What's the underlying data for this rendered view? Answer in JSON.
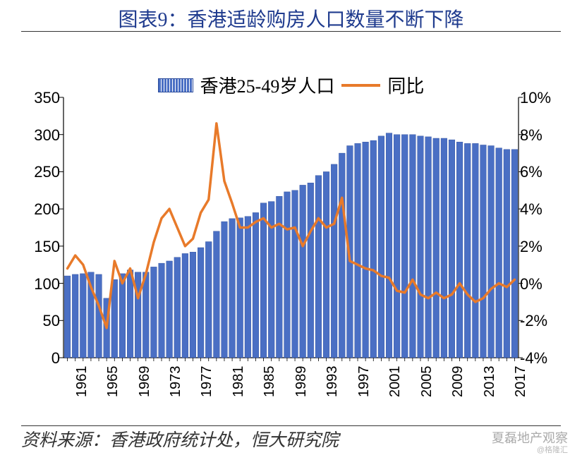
{
  "title": "图表9：香港适龄购房人口数量不断下降",
  "source": "资料来源：香港政府统计处，恒大研究院",
  "watermark_main": "夏磊地产观察",
  "watermark_sub": "@格隆汇",
  "legend": {
    "bar_label": "香港25-49岁人口",
    "line_label": "同比"
  },
  "chart": {
    "type": "bar+line",
    "y_left": {
      "min": 0,
      "max": 350,
      "step": 50
    },
    "y_right": {
      "min": -4,
      "max": 10,
      "step": 2,
      "suffix": "%"
    },
    "x_tick_step": 4,
    "years_start": 1961,
    "years_end": 2018,
    "bar_values": [
      110,
      112,
      113,
      115,
      112,
      80,
      105,
      113,
      118,
      115,
      115,
      122,
      127,
      130,
      135,
      140,
      142,
      148,
      156,
      170,
      183,
      187,
      188,
      190,
      195,
      208,
      210,
      217,
      223,
      225,
      232,
      235,
      245,
      250,
      260,
      275,
      285,
      288,
      290,
      292,
      298,
      302,
      300,
      300,
      300,
      298,
      297,
      295,
      295,
      293,
      290,
      288,
      288,
      286,
      285,
      282,
      280,
      280
    ],
    "line_values": [
      0.8,
      1.5,
      1.0,
      -0.2,
      -1.2,
      -2.4,
      1.2,
      0.0,
      0.8,
      -0.8,
      0.5,
      2.2,
      3.5,
      4.0,
      3.0,
      2.0,
      2.4,
      3.8,
      4.5,
      8.6,
      5.5,
      4.3,
      3.0,
      3.0,
      3.3,
      3.5,
      3.0,
      3.2,
      2.9,
      3.0,
      2.0,
      2.8,
      3.5,
      3.0,
      3.2,
      4.6,
      1.2,
      1.0,
      0.8,
      0.7,
      0.4,
      0.3,
      -0.4,
      -0.5,
      0.2,
      -0.6,
      -0.8,
      -0.5,
      -0.8,
      -0.6,
      0.0,
      -0.6,
      -1.0,
      -0.8,
      -0.3,
      0.0,
      -0.2,
      0.2
    ],
    "colors": {
      "bar_fill": "#4a6fc4",
      "bar_stroke": "#2a4a9a",
      "line": "#e87a2a",
      "axis": "#000000",
      "grid": "none",
      "background": "#ffffff",
      "title_text": "#1f3b8e",
      "text": "#000000"
    },
    "line_width": 3.5,
    "bar_gap_ratio": 0.22,
    "title_fontsize": 28,
    "axis_fontsize": 22,
    "legend_fontsize": 26
  }
}
